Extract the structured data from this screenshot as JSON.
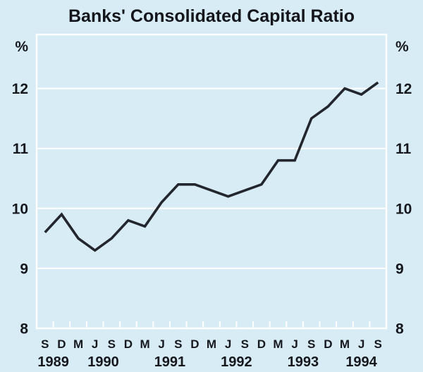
{
  "title": "Banks' Consolidated Capital Ratio",
  "chart_data": {
    "type": "line",
    "title": "Banks' Consolidated Capital Ratio",
    "unit": "%",
    "frequency": "quarterly",
    "x_tick_labels": [
      "S",
      "D",
      "M",
      "J",
      "S",
      "D",
      "M",
      "J",
      "S",
      "D",
      "M",
      "J",
      "S",
      "D",
      "M",
      "J",
      "S",
      "D",
      "M",
      "J",
      "S"
    ],
    "year_labels": [
      {
        "label": "1989",
        "point_indices": [
          0,
          1
        ]
      },
      {
        "label": "1990",
        "point_indices": [
          2,
          3,
          4,
          5
        ]
      },
      {
        "label": "1991",
        "point_indices": [
          6,
          7,
          8,
          9
        ]
      },
      {
        "label": "1992",
        "point_indices": [
          10,
          11,
          12,
          13
        ]
      },
      {
        "label": "1993",
        "point_indices": [
          14,
          15,
          16,
          17
        ]
      },
      {
        "label": "1994",
        "point_indices": [
          18,
          19,
          20
        ]
      }
    ],
    "values": [
      9.6,
      9.9,
      9.5,
      9.3,
      9.5,
      9.8,
      9.7,
      10.1,
      10.4,
      10.4,
      10.3,
      10.2,
      10.3,
      10.4,
      10.8,
      10.8,
      11.5,
      11.7,
      12.0,
      11.9,
      12.1
    ],
    "y_ticks": [
      8,
      9,
      10,
      11,
      12
    ],
    "ylim": [
      8,
      12.9
    ],
    "grid": true,
    "legend": "none",
    "colors": {
      "background": "#d8ecf6",
      "plot_border": "#ffffff",
      "gridline": "#ffffff",
      "line": "#23262c",
      "text": "#16181d"
    }
  }
}
